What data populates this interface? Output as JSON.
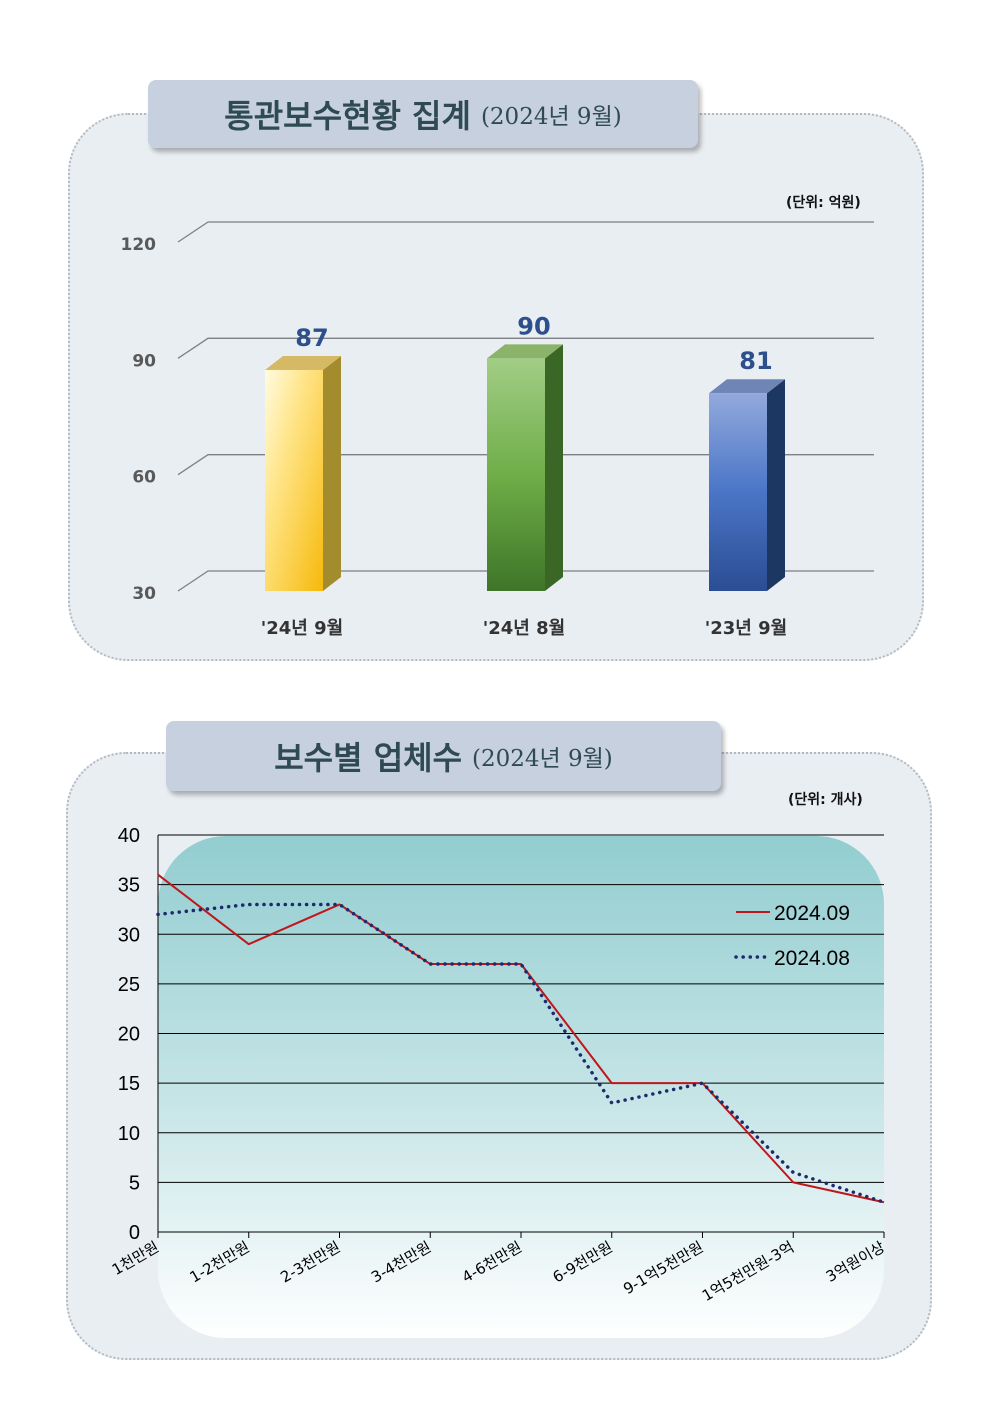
{
  "top": {
    "title": "통관보수현황 집계",
    "subtitle": "(2024년 9월)",
    "unit": "(단위: 억원)"
  },
  "bottom": {
    "title": "보수별 업체수",
    "subtitle": "(2024년 9월)",
    "unit": "(단위: 개사)"
  },
  "chart_data": [
    {
      "type": "bar",
      "categories": [
        "'24년 9월",
        "'24년 8월",
        "'23년 9월"
      ],
      "values": [
        87,
        90,
        81
      ],
      "data_labels": [
        "87",
        "90",
        "81"
      ],
      "ylim": [
        30,
        120
      ],
      "yticks": [
        "30",
        "60",
        "90",
        "120"
      ],
      "grid": true,
      "colors": [
        "#f7c531",
        "#5f9b3c",
        "#3a62ad"
      ]
    },
    {
      "type": "line",
      "categories": [
        "1천만원",
        "1-2천만원",
        "2-3천만원",
        "3-4천만원",
        "4-6천만원",
        "6-9천만원",
        "9-1억5천만원",
        "1억5천만원-3억",
        "3억원이상"
      ],
      "series": [
        {
          "name": "2024.09",
          "values": [
            36,
            29,
            33,
            27,
            27,
            15,
            15,
            5,
            3
          ],
          "color": "#c0161b",
          "style": "solid"
        },
        {
          "name": "2024.08",
          "values": [
            32,
            33,
            33,
            27,
            27,
            13,
            15,
            6,
            3
          ],
          "color": "#1d2a6c",
          "style": "dotted"
        }
      ],
      "ylim": [
        0,
        40
      ],
      "yticks": [
        "0",
        "5",
        "10",
        "15",
        "20",
        "25",
        "30",
        "35",
        "40"
      ],
      "grid": true,
      "legend": "right"
    }
  ]
}
